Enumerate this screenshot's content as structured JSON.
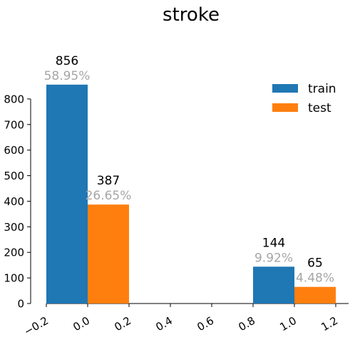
{
  "chart_data": {
    "type": "bar",
    "title": "stroke",
    "xlabel": "",
    "ylabel": "",
    "xlim": [
      -0.2,
      1.2
    ],
    "ylim": [
      0,
      900
    ],
    "bar_width": 0.2,
    "x_ticks": [
      "−0.2",
      "0.0",
      "0.2",
      "0.4",
      "0.6",
      "0.8",
      "1.0",
      "1.2"
    ],
    "y_ticks": [
      "0",
      "100",
      "200",
      "300",
      "400",
      "500",
      "600",
      "700",
      "800"
    ],
    "legend_position": "top-right",
    "series": [
      {
        "name": "train",
        "color": "#1f77b4",
        "x": [
          -0.1,
          0.9
        ],
        "values": [
          856,
          144
        ],
        "percent_labels": [
          "58.95%",
          "9.92%"
        ]
      },
      {
        "name": "test",
        "color": "#ff7f0e",
        "x": [
          0.1,
          1.1
        ],
        "values": [
          387,
          65
        ],
        "percent_labels": [
          "26.65%",
          "4.48%"
        ]
      }
    ]
  }
}
